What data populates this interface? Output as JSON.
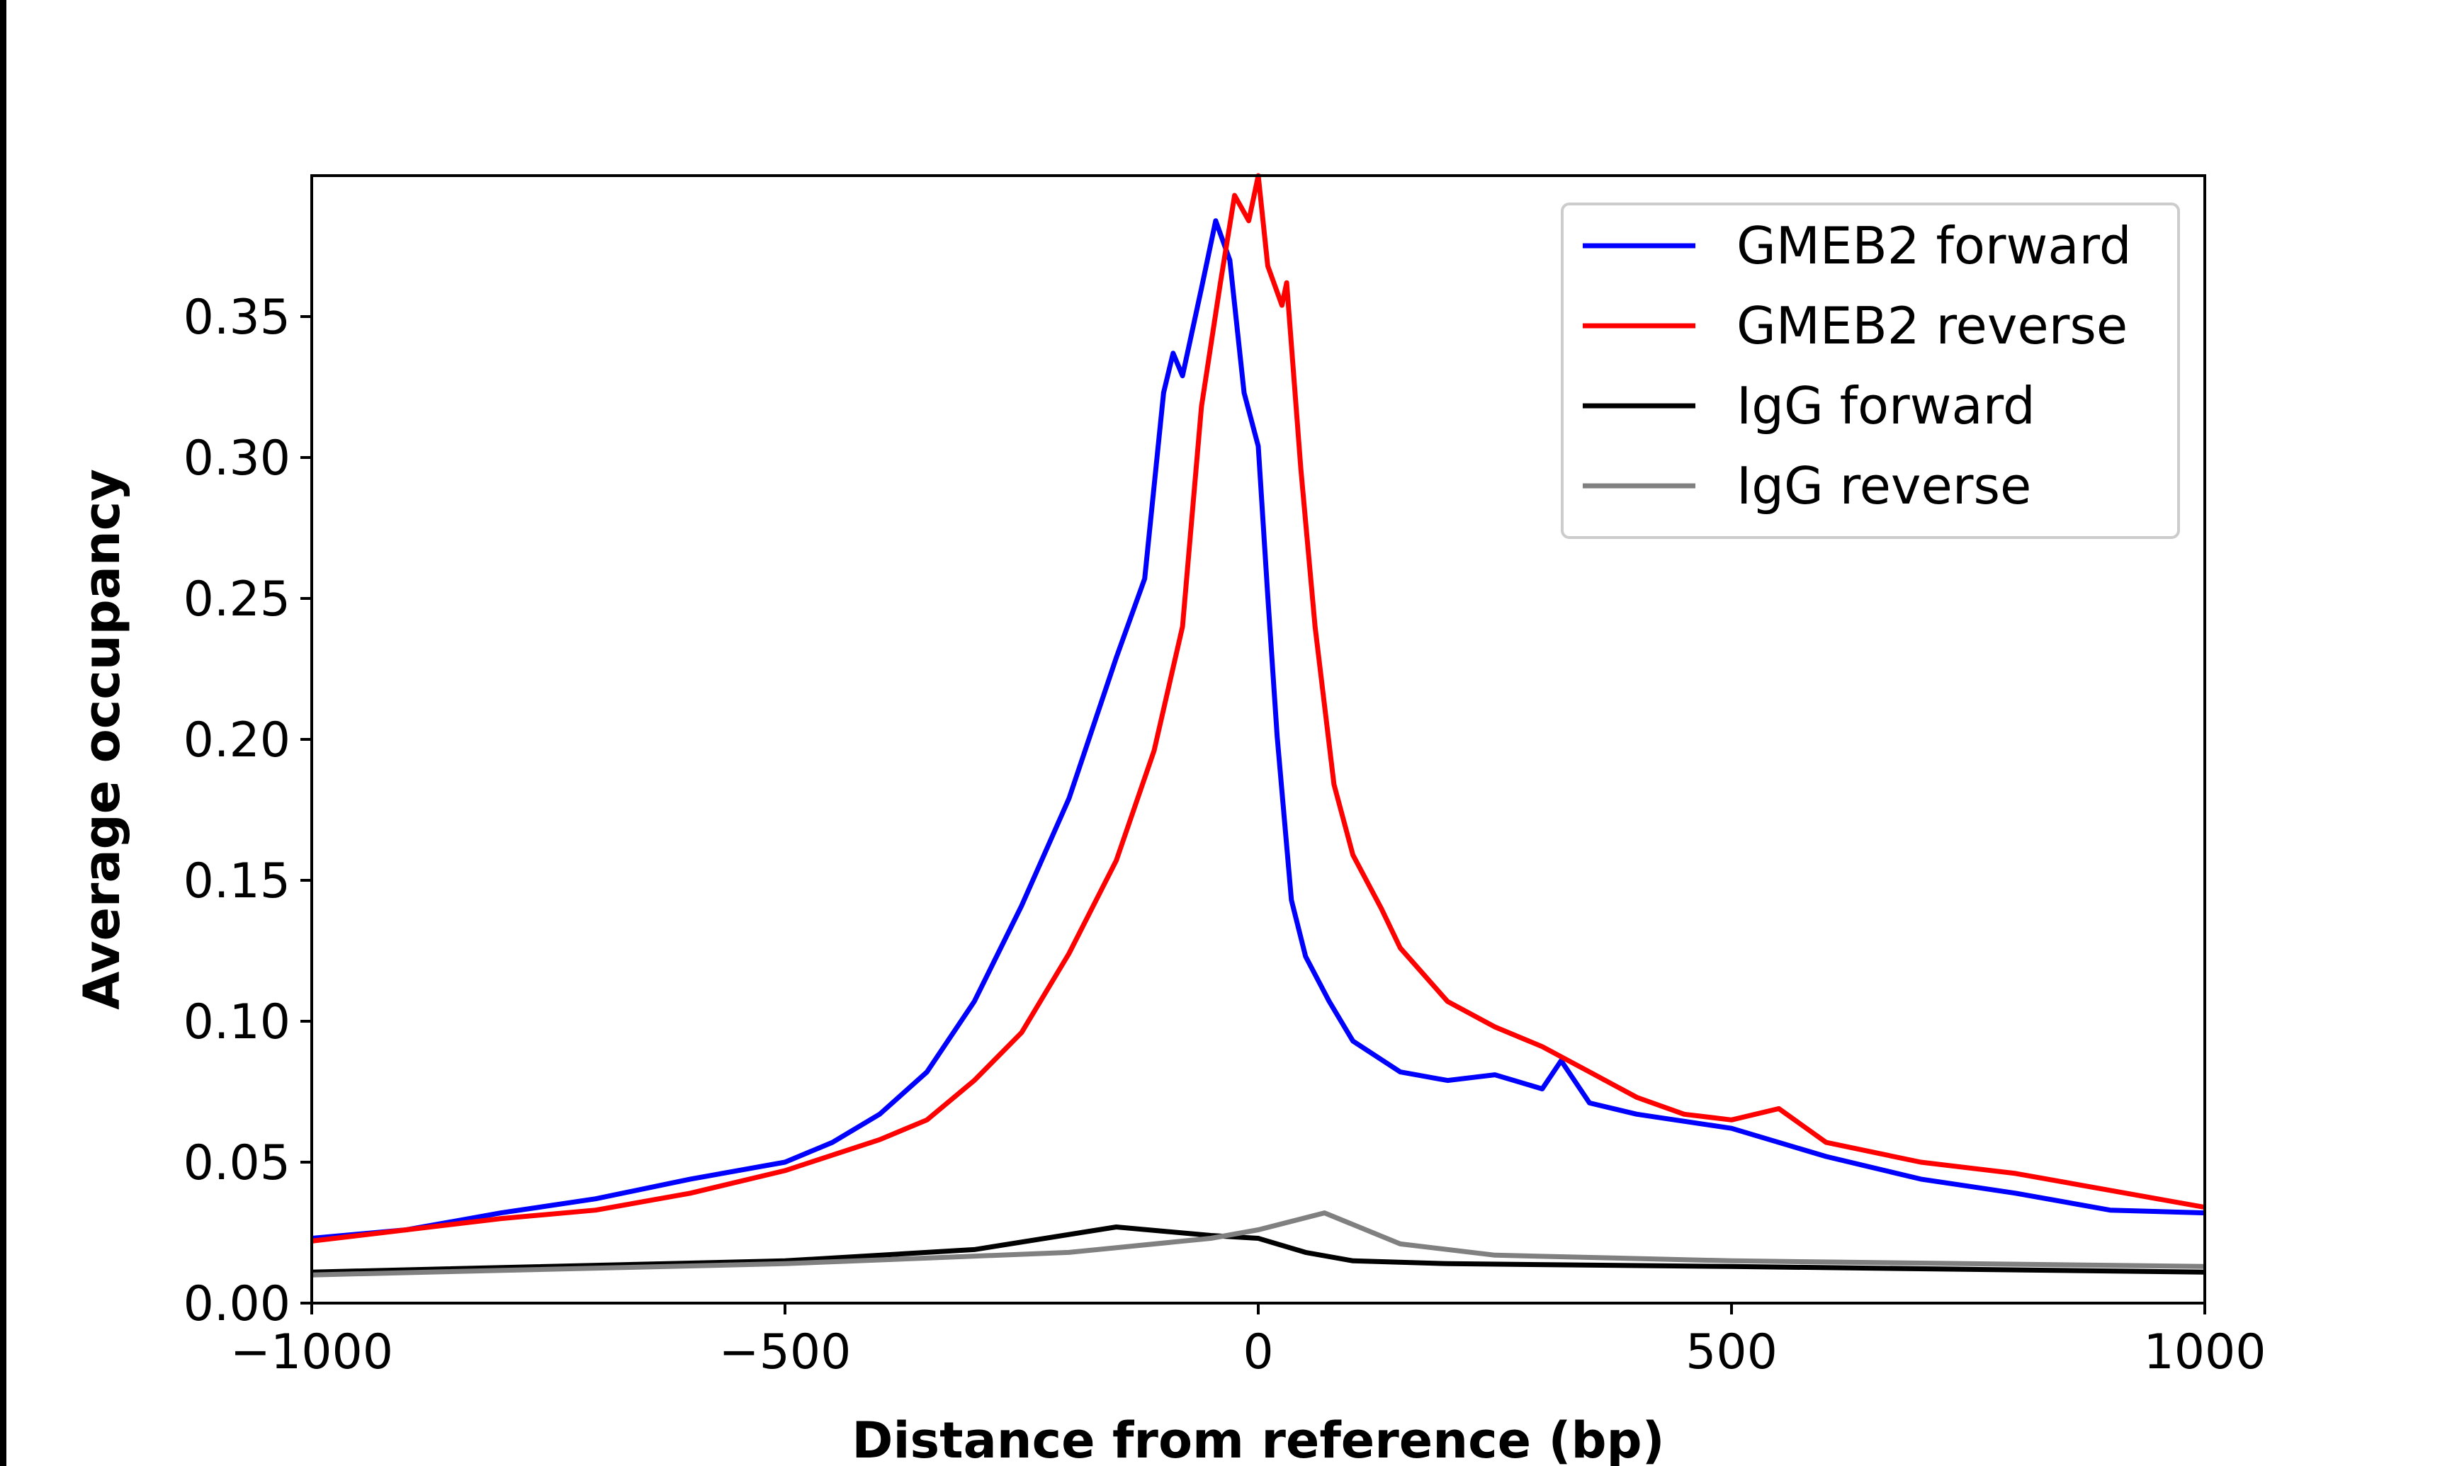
{
  "chart_data": {
    "type": "line",
    "title": "",
    "xlabel": "Distance from reference (bp)",
    "ylabel": "Average occupancy",
    "xlim": [
      -1000,
      1000
    ],
    "ylim": [
      0,
      0.4
    ],
    "xticks": [
      -1000,
      -500,
      0,
      500,
      1000
    ],
    "xtick_labels": [
      "−1000",
      "−500",
      "0",
      "500",
      "1000"
    ],
    "yticks": [
      0,
      0.05,
      0.1,
      0.15,
      0.2,
      0.25,
      0.3,
      0.35
    ],
    "ytick_labels": [
      "0.00",
      "0.05",
      "0.10",
      "0.15",
      "0.20",
      "0.25",
      "0.30",
      "0.35"
    ],
    "grid": false,
    "legend_position": "top-right",
    "series": [
      {
        "name": "GMEB2 forward",
        "color": "#0000ff",
        "x": [
          -1000,
          -900,
          -800,
          -700,
          -600,
          -500,
          -450,
          -400,
          -350,
          -300,
          -250,
          -200,
          -150,
          -120,
          -100,
          -90,
          -80,
          -60,
          -45,
          -30,
          -15,
          0,
          10,
          20,
          35,
          50,
          75,
          100,
          150,
          200,
          250,
          300,
          320,
          350,
          400,
          500,
          600,
          700,
          800,
          900,
          1000
        ],
        "y": [
          0.023,
          0.026,
          0.032,
          0.037,
          0.044,
          0.05,
          0.057,
          0.067,
          0.082,
          0.107,
          0.141,
          0.179,
          0.229,
          0.257,
          0.323,
          0.337,
          0.329,
          0.36,
          0.384,
          0.37,
          0.323,
          0.304,
          0.251,
          0.201,
          0.143,
          0.123,
          0.107,
          0.093,
          0.082,
          0.079,
          0.081,
          0.076,
          0.086,
          0.071,
          0.067,
          0.062,
          0.052,
          0.044,
          0.039,
          0.033,
          0.032
        ]
      },
      {
        "name": "GMEB2 reverse",
        "color": "#ff0000",
        "x": [
          -1000,
          -800,
          -700,
          -600,
          -500,
          -400,
          -350,
          -300,
          -250,
          -200,
          -150,
          -110,
          -80,
          -60,
          -40,
          -25,
          -10,
          0,
          10,
          25,
          30,
          45,
          60,
          80,
          100,
          130,
          150,
          200,
          250,
          300,
          350,
          400,
          450,
          500,
          550,
          600,
          700,
          800,
          900,
          1000
        ],
        "y": [
          0.022,
          0.03,
          0.033,
          0.039,
          0.047,
          0.058,
          0.065,
          0.079,
          0.096,
          0.124,
          0.157,
          0.196,
          0.24,
          0.318,
          0.362,
          0.393,
          0.384,
          0.4,
          0.368,
          0.354,
          0.362,
          0.296,
          0.24,
          0.184,
          0.159,
          0.14,
          0.126,
          0.107,
          0.098,
          0.091,
          0.082,
          0.073,
          0.067,
          0.065,
          0.069,
          0.057,
          0.05,
          0.046,
          0.04,
          0.034
        ]
      },
      {
        "name": "IgG forward",
        "color": "#000000",
        "x": [
          -1000,
          -500,
          -300,
          -150,
          -50,
          0,
          50,
          100,
          200,
          500,
          1000
        ],
        "y": [
          0.011,
          0.015,
          0.019,
          0.027,
          0.024,
          0.023,
          0.018,
          0.015,
          0.014,
          0.013,
          0.011
        ]
      },
      {
        "name": "IgG reverse",
        "color": "#808080",
        "x": [
          -1000,
          -500,
          -200,
          -50,
          0,
          70,
          150,
          250,
          500,
          1000
        ],
        "y": [
          0.01,
          0.014,
          0.018,
          0.023,
          0.026,
          0.032,
          0.021,
          0.017,
          0.015,
          0.013
        ]
      }
    ]
  }
}
